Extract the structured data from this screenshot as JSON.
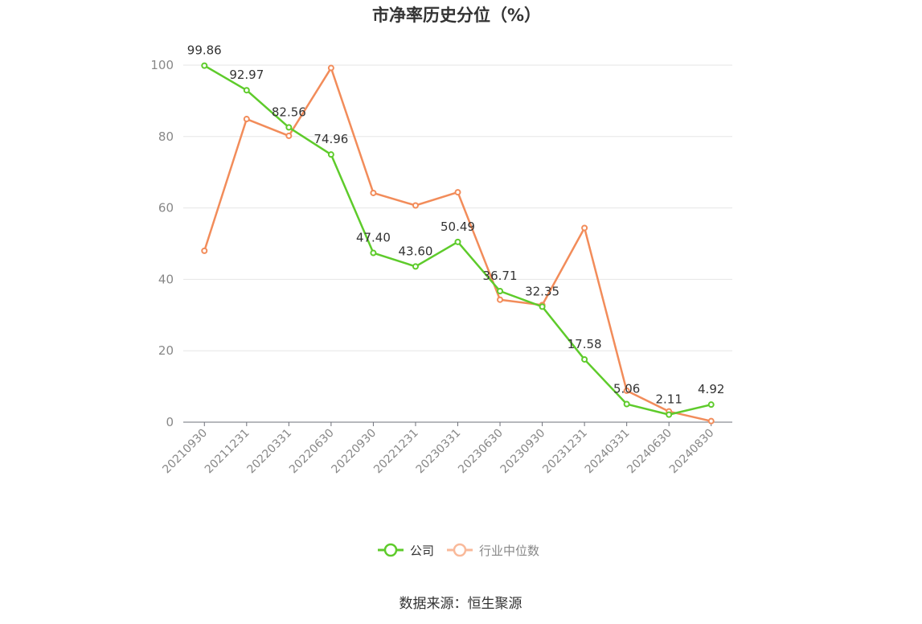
{
  "chart_data": {
    "type": "line",
    "title": "市净率历史分位（%）",
    "categories": [
      "20210930",
      "20211231",
      "20220331",
      "20220630",
      "20220930",
      "20221231",
      "20230331",
      "20230630",
      "20230930",
      "20231231",
      "20240331",
      "20240630",
      "20240830"
    ],
    "ylim": [
      0,
      100
    ],
    "yticks": [
      "0",
      "20",
      "40",
      "60",
      "80",
      "100"
    ],
    "series": [
      {
        "name": "公司",
        "color": "#5ecb2b",
        "values": [
          99.86,
          92.97,
          82.56,
          74.96,
          47.4,
          43.6,
          50.49,
          36.71,
          32.35,
          17.58,
          5.06,
          2.11,
          4.92
        ],
        "labels": [
          "99.86",
          "92.97",
          "82.56",
          "74.96",
          "47.40",
          "43.60",
          "50.49",
          "36.71",
          "32.35",
          "17.58",
          "5.06",
          "2.11",
          "4.92"
        ]
      },
      {
        "name": "行业中位数",
        "color": "#f28c5a",
        "values": [
          48.0,
          84.9,
          80.2,
          99.2,
          64.2,
          60.7,
          64.4,
          34.3,
          32.8,
          54.4,
          8.8,
          3.0,
          0.3
        ]
      }
    ],
    "legend_position": "bottom",
    "grid": true,
    "source": "数据来源：恒生聚源"
  }
}
